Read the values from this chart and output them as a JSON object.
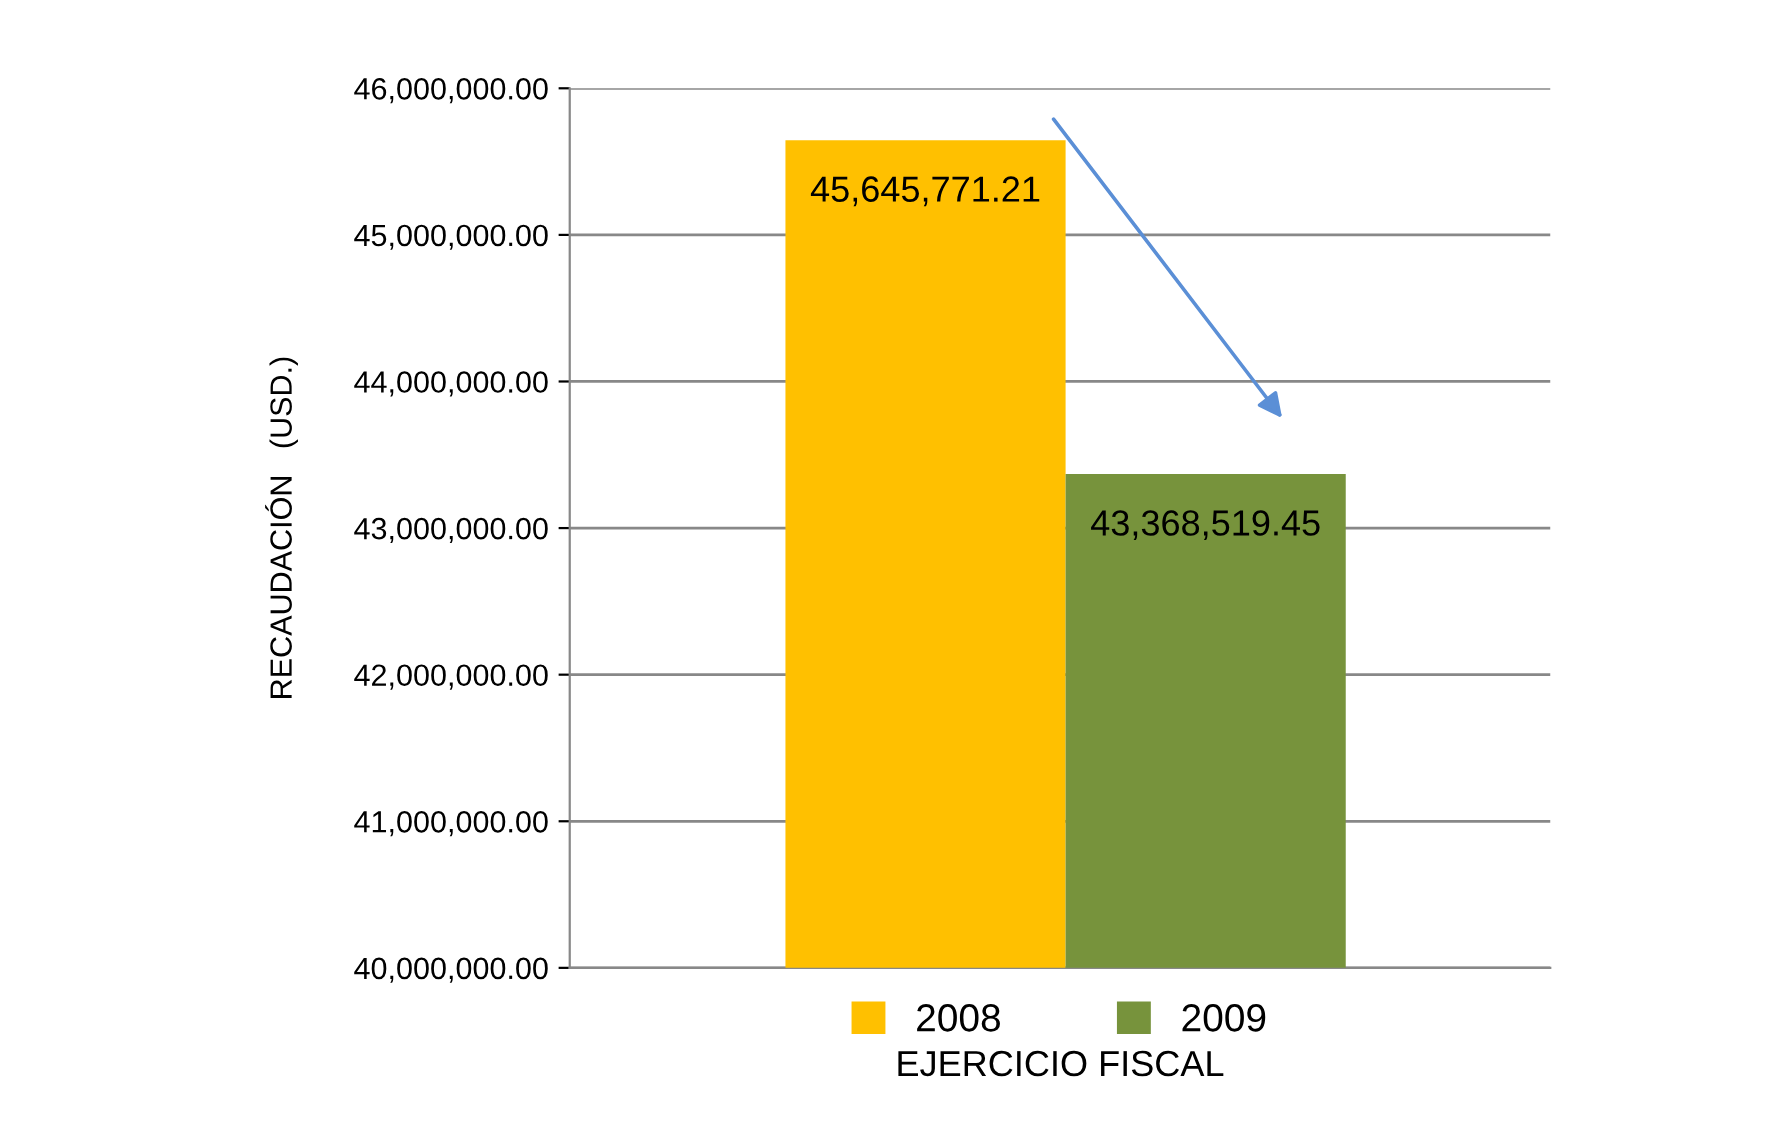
{
  "chart_data": {
    "type": "bar",
    "xlabel": "EJERCICIO FISCAL",
    "ylabel": "RECAUDACIÓN   (USD.)",
    "categories": [
      null
    ],
    "series": [
      {
        "name": "2008",
        "color": "#ffc000",
        "values": [
          45645771.21
        ],
        "value_labels": [
          "45,645,771.21"
        ]
      },
      {
        "name": "2009",
        "color": "#77933c",
        "values": [
          43368519.45
        ],
        "value_labels": [
          "43,368,519.45"
        ]
      }
    ],
    "ylim": [
      40000000,
      46000000
    ],
    "yticks": [
      {
        "value": 40000000,
        "label": "40,000,000.00"
      },
      {
        "value": 41000000,
        "label": "41,000,000.00"
      },
      {
        "value": 42000000,
        "label": "42,000,000.00"
      },
      {
        "value": 43000000,
        "label": "43,000,000.00"
      },
      {
        "value": 44000000,
        "label": "44,000,000.00"
      },
      {
        "value": 45000000,
        "label": "45,000,000.00"
      },
      {
        "value": 46000000,
        "label": "46,000,000.00"
      }
    ],
    "grid": "y",
    "legend": "bottom"
  }
}
